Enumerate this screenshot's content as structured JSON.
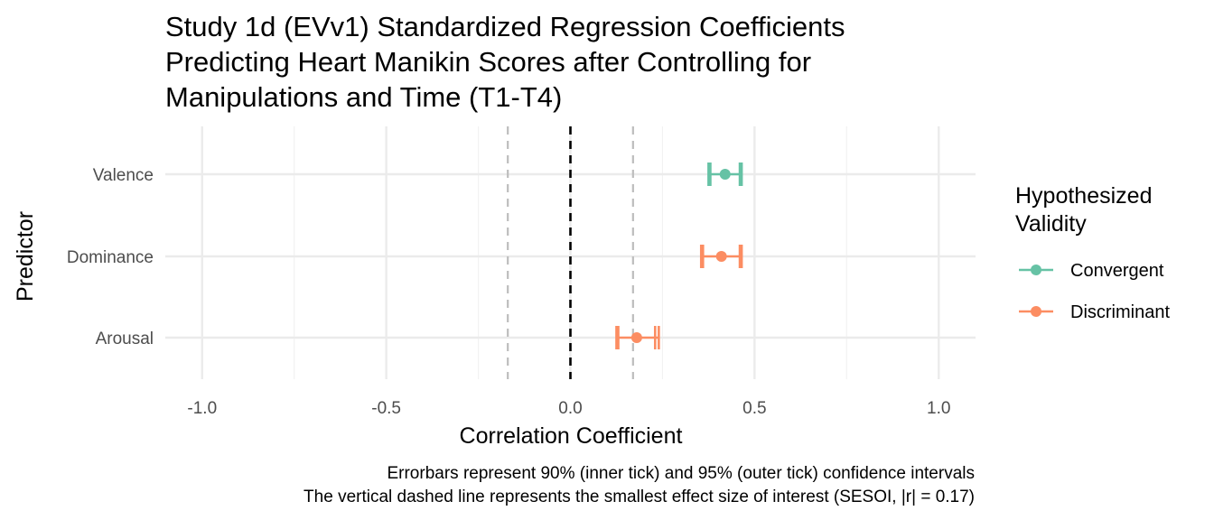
{
  "chart_data": {
    "type": "forest",
    "title_lines": [
      "Study 1d (EVv1) Standardized Regression Coefficients",
      "Predicting Heart Manikin Scores after Controlling for",
      "Manipulations and Time (T1-T4)"
    ],
    "xlabel": "Correlation Coefficient",
    "ylabel": "Predictor",
    "xlim": [
      -1.1,
      1.1
    ],
    "x_ticks": [
      -1.0,
      -0.5,
      0.0,
      0.5,
      1.0
    ],
    "x_tick_labels": [
      "-1.0",
      "-0.5",
      "0.0",
      "0.5",
      "1.0"
    ],
    "categories": [
      "Valence",
      "Dominance",
      "Arousal"
    ],
    "series": [
      {
        "name": "Convergent",
        "color": "#66c2a5",
        "points": [
          {
            "category": "Valence",
            "estimate": 0.42,
            "ci90": [
              0.38,
              0.46
            ],
            "ci95": [
              0.375,
              0.465
            ]
          }
        ]
      },
      {
        "name": "Discriminant",
        "color": "#fc8d62",
        "points": [
          {
            "category": "Dominance",
            "estimate": 0.41,
            "ci90": [
              0.36,
              0.46
            ],
            "ci95": [
              0.355,
              0.465
            ]
          },
          {
            "category": "Arousal",
            "estimate": 0.18,
            "ci90": [
              0.13,
              0.23
            ],
            "ci95": [
              0.125,
              0.24
            ]
          }
        ]
      }
    ],
    "reference_lines": [
      {
        "x": 0,
        "style": "dashed",
        "color": "#000000"
      },
      {
        "x": -0.17,
        "style": "dashed",
        "color": "#bdbdbd"
      },
      {
        "x": 0.17,
        "style": "dashed",
        "color": "#bdbdbd"
      }
    ],
    "legend": {
      "title_lines": [
        "Hypothesized",
        "Validity"
      ],
      "entries": [
        "Convergent",
        "Discriminant"
      ],
      "placement": "right"
    },
    "caption_lines": [
      "Errorbars represent 90% (inner tick) and 95% (outer tick) confidence intervals",
      "The vertical dashed line represents the smallest effect size of interest (SESOI, |r| = 0.17)"
    ],
    "grid": true
  }
}
